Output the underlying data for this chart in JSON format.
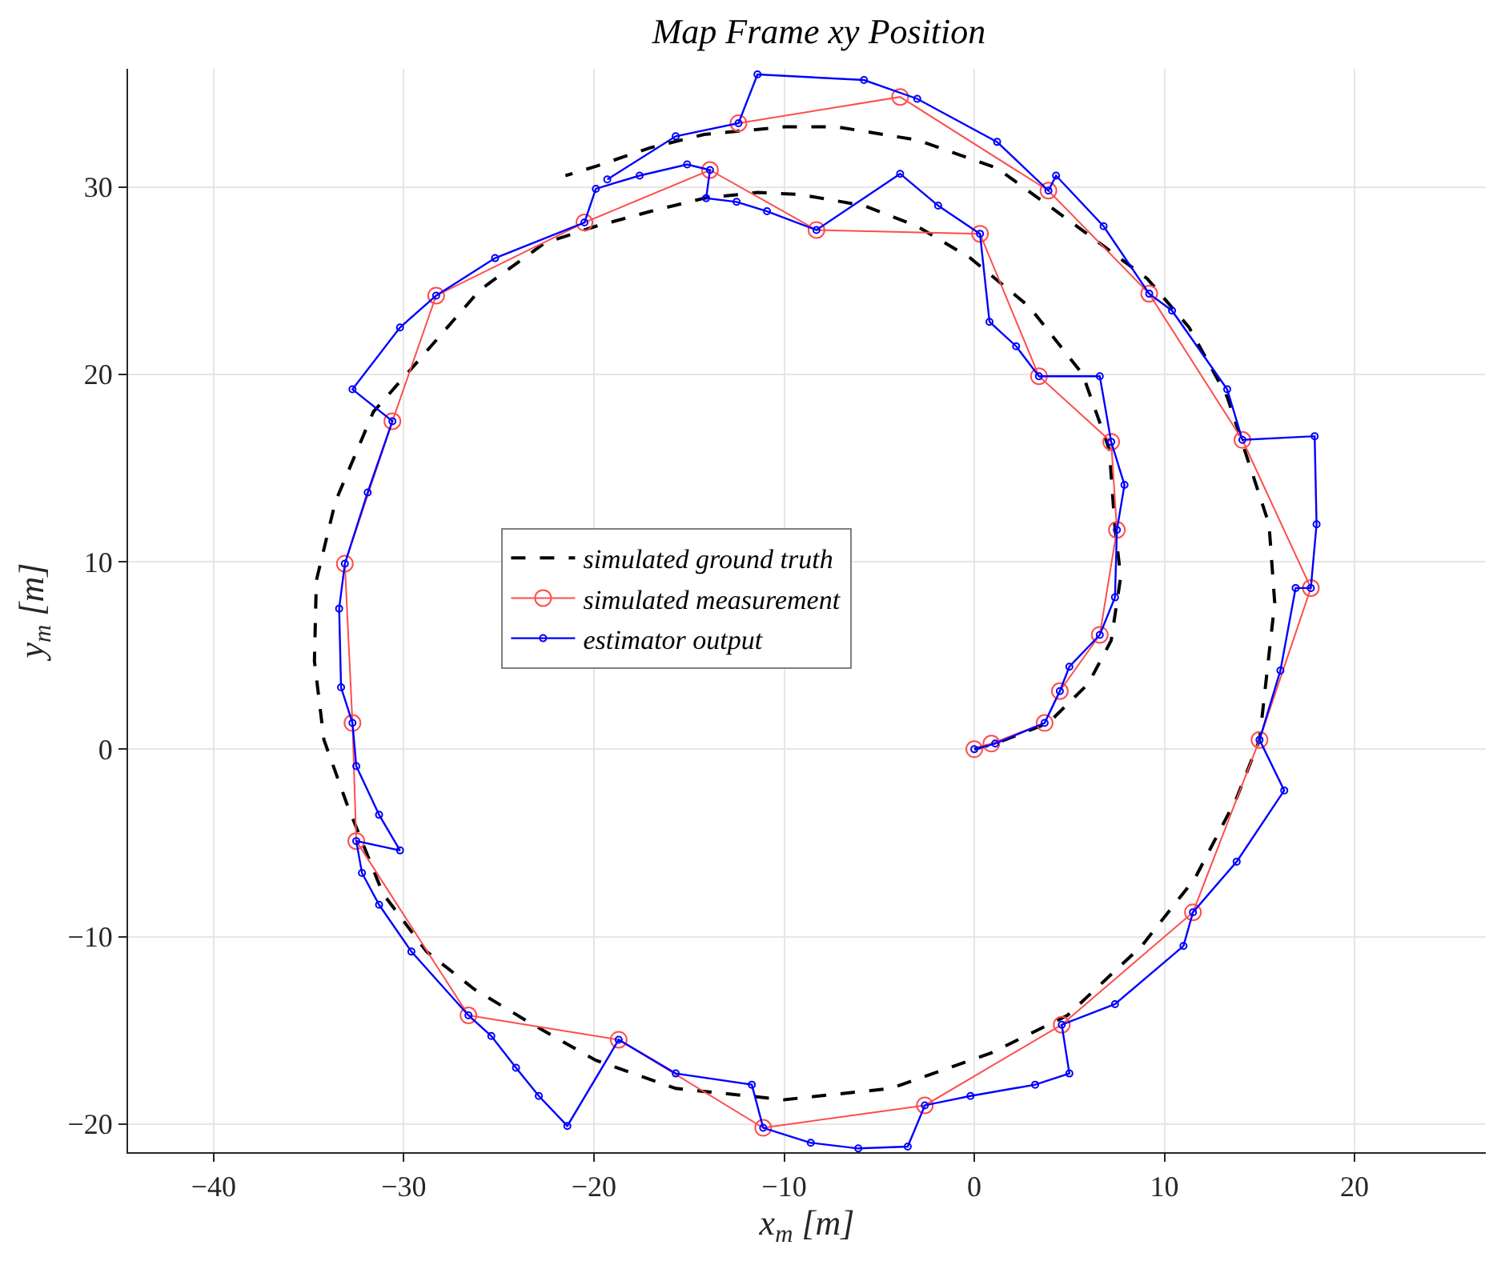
{
  "chart_data": {
    "type": "line",
    "title": "Map Frame xy Position",
    "xlabel": "x$_{m}$ [m]",
    "ylabel": "y$_{m}$ [m]",
    "xlim": [
      -44.5,
      26.9
    ],
    "ylim": [
      -21.5,
      36.3
    ],
    "xticks": [
      -40,
      -30,
      -20,
      -10,
      0,
      10,
      20
    ],
    "yticks": [
      -20,
      -10,
      0,
      10,
      20,
      30
    ],
    "grid": true,
    "legend": "center",
    "line_style": "solid",
    "series": [
      {
        "name": "simulated ground truth",
        "color": "#000000",
        "line_style": "dashed",
        "marker": "none",
        "x": [
          0,
          1.1,
          3.9,
          6.0,
          7.2,
          7.7,
          7.4,
          7.1,
          5.7,
          2.9,
          -0.2,
          -3.0,
          -5.8,
          -9.2,
          -11.4,
          -14.2,
          -17.0,
          -19.9,
          -22.6,
          -26.0,
          -29.6,
          -31.6,
          -33.6,
          -34.6,
          -34.7,
          -34.2,
          -33.0,
          -31.1,
          -28.8,
          -26.3,
          -23.2,
          -19.9,
          -15.7,
          -10.0,
          -4.4,
          0.9,
          4.9,
          8.8,
          11.6,
          13.8,
          15.0,
          15.8,
          15.5,
          14.4,
          13.3,
          11.3,
          9.1,
          5.4,
          1.2,
          -3.0,
          -7.2,
          -10.0,
          -14.2,
          -17.0,
          -19.9,
          -21.5
        ],
        "values": [
          0,
          0.3,
          1.4,
          3.5,
          5.8,
          9.2,
          11.8,
          16.0,
          20.0,
          23.6,
          26.2,
          27.9,
          29.0,
          29.6,
          29.7,
          29.4,
          28.7,
          27.9,
          27.0,
          24.5,
          20.3,
          18.0,
          13.2,
          9.0,
          4.7,
          0.5,
          -2.9,
          -7.7,
          -10.8,
          -12.8,
          -14.7,
          -16.6,
          -18.1,
          -18.7,
          -18.1,
          -16.2,
          -14.2,
          -10.5,
          -6.9,
          -2.6,
          0.5,
          7.8,
          12.0,
          15.4,
          18.8,
          22.5,
          25.1,
          27.9,
          31.0,
          32.5,
          33.2,
          33.2,
          32.8,
          32.1,
          31.1,
          30.6
        ]
      },
      {
        "name": "simulated measurement",
        "color": "#ff4d4d",
        "marker": "circle",
        "x": [
          0,
          0.9,
          3.7,
          4.5,
          6.6,
          7.5,
          7.2,
          3.4,
          0.3,
          -8.3,
          -13.9,
          -20.5,
          -28.3,
          -30.6,
          -33.1,
          -32.7,
          -32.5,
          -26.6,
          -18.7,
          -11.1,
          -2.6,
          4.6,
          11.5,
          15.0,
          17.7,
          14.1,
          9.2,
          3.9,
          -3.9,
          -12.4
        ],
        "values": [
          0,
          0.3,
          1.4,
          3.1,
          6.1,
          11.7,
          16.4,
          19.9,
          27.5,
          27.7,
          30.9,
          28.1,
          24.2,
          17.5,
          9.9,
          1.4,
          -4.9,
          -14.2,
          -15.5,
          -20.2,
          -19.0,
          -14.7,
          -8.7,
          0.5,
          8.6,
          16.5,
          24.3,
          29.8,
          34.8,
          33.4
        ]
      },
      {
        "name": "estimator output",
        "color": "#0000ff",
        "marker": "circle",
        "x": [
          0,
          1.1,
          3.7,
          4.5,
          5.0,
          6.6,
          7.4,
          7.5,
          7.9,
          7.2,
          6.6,
          3.4,
          2.2,
          0.8,
          0.3,
          -1.9,
          -3.9,
          -8.3,
          -10.9,
          -12.5,
          -14.1,
          -13.9,
          -15.1,
          -17.6,
          -19.9,
          -20.5,
          -25.2,
          -28.3,
          -30.2,
          -32.7,
          -30.6,
          -31.9,
          -33.1,
          -33.4,
          -33.3,
          -32.7,
          -32.5,
          -31.3,
          -30.2,
          -32.5,
          -32.2,
          -31.3,
          -29.6,
          -26.6,
          -25.4,
          -24.1,
          -22.9,
          -21.4,
          -18.7,
          -15.7,
          -11.7,
          -11.1,
          -8.6,
          -6.1,
          -3.5,
          -2.6,
          -0.2,
          3.2,
          5.0,
          4.6,
          7.4,
          11.0,
          11.5,
          13.8,
          16.3,
          15.0,
          16.1,
          16.9,
          17.7,
          18.0,
          17.9,
          14.1,
          13.3,
          10.4,
          9.2,
          6.8,
          4.3,
          3.9,
          1.2,
          -3.0,
          -5.8,
          -11.4,
          -12.4,
          -15.7,
          -19.3
        ],
        "values": [
          0,
          0.3,
          1.4,
          3.1,
          4.4,
          6.1,
          8.1,
          11.7,
          14.1,
          16.4,
          19.9,
          19.9,
          21.5,
          22.8,
          27.5,
          29.0,
          30.7,
          27.7,
          28.7,
          29.2,
          29.4,
          30.9,
          31.2,
          30.6,
          29.9,
          28.1,
          26.2,
          24.2,
          22.5,
          19.2,
          17.5,
          13.7,
          9.9,
          7.5,
          3.3,
          1.4,
          -0.9,
          -3.5,
          -5.4,
          -4.9,
          -6.6,
          -8.3,
          -10.8,
          -14.2,
          -15.3,
          -17.0,
          -18.5,
          -20.1,
          -15.5,
          -17.3,
          -17.9,
          -20.2,
          -21.0,
          -21.3,
          -21.2,
          -19.0,
          -18.5,
          -17.9,
          -17.3,
          -14.7,
          -13.6,
          -10.5,
          -8.7,
          -6.0,
          -2.2,
          0.5,
          4.2,
          8.6,
          8.6,
          12.0,
          16.7,
          16.5,
          19.2,
          23.4,
          24.3,
          27.9,
          30.6,
          29.8,
          32.4,
          34.7,
          35.7,
          36.0,
          33.4,
          32.7,
          30.4
        ]
      }
    ]
  }
}
